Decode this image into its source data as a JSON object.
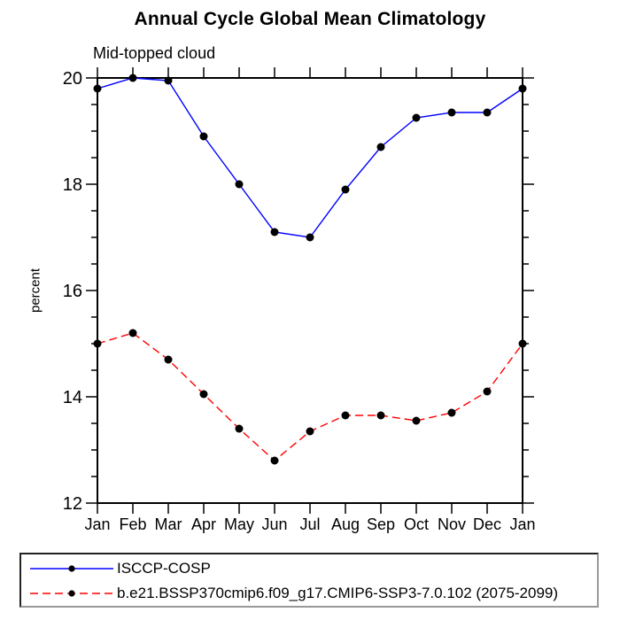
{
  "title": "Annual Cycle Global Mean Climatology",
  "subtitle": "Mid-topped cloud",
  "chart_data": {
    "type": "line",
    "title": "Annual Cycle Global Mean Climatology",
    "subtitle": "Mid-topped cloud",
    "xlabel": "",
    "ylabel": "percent",
    "categories": [
      "Jan",
      "Feb",
      "Mar",
      "Apr",
      "May",
      "Jun",
      "Jul",
      "Aug",
      "Sep",
      "Oct",
      "Nov",
      "Dec",
      "Jan"
    ],
    "series": [
      {
        "name": "ISCCP-COSP",
        "color": "#0000ff",
        "line_style": "solid",
        "marker": "circle",
        "marker_color": "#000000",
        "values": [
          19.8,
          20.0,
          19.95,
          18.9,
          18.0,
          17.1,
          17.0,
          17.9,
          18.7,
          19.25,
          19.35,
          19.35,
          19.8
        ]
      },
      {
        "name": "b.e21.BSSP370cmip6.f09_g17.CMIP6-SSP3-7.0.102 (2075-2099)",
        "color": "#ff0000",
        "line_style": "dashed",
        "marker": "circle",
        "marker_color": "#000000",
        "values": [
          15.0,
          15.2,
          14.7,
          14.05,
          13.4,
          12.8,
          13.35,
          13.65,
          13.65,
          13.55,
          13.7,
          14.1,
          15.0
        ]
      }
    ],
    "ylim": [
      12,
      20
    ],
    "yticks": [
      12,
      14,
      16,
      18,
      20
    ],
    "ytick_minor_step": 0.5,
    "grid": false,
    "legend_position": "bottom",
    "axis_color": "#000000",
    "background_color": "#ffffff"
  }
}
